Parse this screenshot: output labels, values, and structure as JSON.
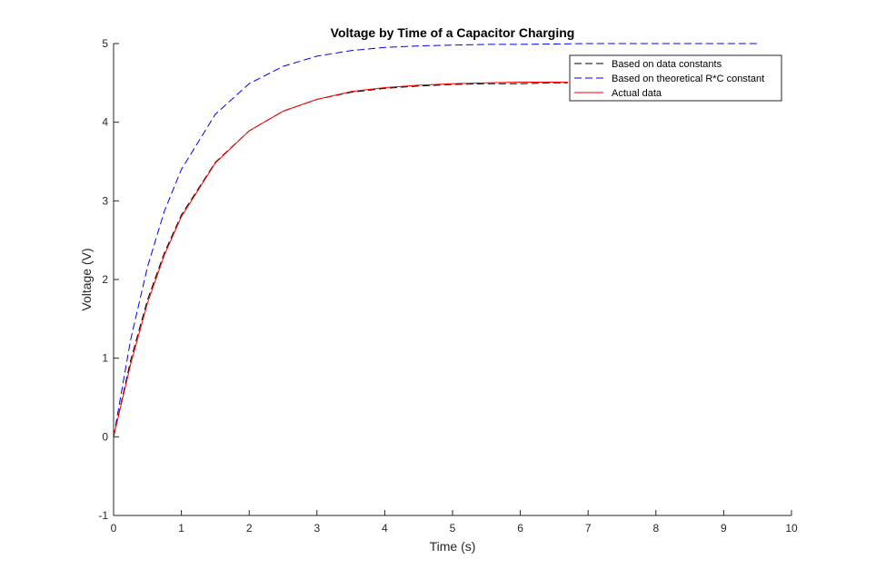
{
  "chart_data": {
    "type": "line",
    "title": "Voltage by Time of a Capacitor Charging",
    "xlabel": "Time (s)",
    "ylabel": "Voltage (V)",
    "xlim": [
      0,
      10
    ],
    "ylim": [
      -1,
      5
    ],
    "xticks": [
      "0",
      "1",
      "2",
      "3",
      "4",
      "5",
      "6",
      "7",
      "8",
      "9",
      "10"
    ],
    "yticks": [
      "-1",
      "0",
      "1",
      "2",
      "3",
      "4",
      "5"
    ],
    "grid": false,
    "legend_position": "top-right",
    "series": [
      {
        "name": "Based on data constants",
        "color": "#000000",
        "style": "dashed",
        "x": [
          0,
          0.25,
          0.5,
          0.75,
          1.0,
          1.5,
          2.0,
          2.5,
          3.0,
          3.5,
          4.0,
          4.5,
          5.0,
          5.5,
          6.0,
          6.5,
          6.7
        ],
        "y": [
          0,
          0.97,
          1.74,
          2.34,
          2.82,
          3.49,
          3.89,
          4.14,
          4.29,
          4.38,
          4.43,
          4.46,
          4.48,
          4.49,
          4.49,
          4.5,
          4.5
        ]
      },
      {
        "name": "Based on theoretical R*C constant",
        "color": "#0000ff",
        "style": "dashed",
        "x": [
          0,
          0.25,
          0.5,
          0.75,
          1.0,
          1.5,
          2.0,
          2.5,
          3.0,
          3.5,
          4.0,
          4.5,
          5.0,
          5.5,
          6.0,
          7.0,
          8.0,
          9.0,
          9.5
        ],
        "y": [
          0,
          1.23,
          2.16,
          2.87,
          3.4,
          4.1,
          4.49,
          4.71,
          4.84,
          4.91,
          4.95,
          4.97,
          4.98,
          4.99,
          4.99,
          5.0,
          5.0,
          5.0,
          5.0
        ]
      },
      {
        "name": "Actual data",
        "color": "#ff0000",
        "style": "solid",
        "x": [
          0,
          0.25,
          0.5,
          0.75,
          1.0,
          1.5,
          2.0,
          2.5,
          3.0,
          3.5,
          4.0,
          4.5,
          5.0,
          5.5,
          6.0,
          6.5,
          6.7
        ],
        "y": [
          0,
          0.92,
          1.7,
          2.31,
          2.8,
          3.48,
          3.89,
          4.14,
          4.29,
          4.39,
          4.44,
          4.47,
          4.49,
          4.5,
          4.51,
          4.51,
          4.51
        ]
      }
    ]
  }
}
